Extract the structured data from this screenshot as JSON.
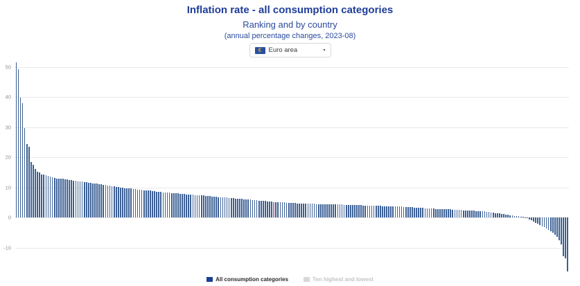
{
  "header": {
    "title": "Inflation rate - all consumption categories",
    "subtitle": "Ranking and by country",
    "note": "(annual percentage changes, 2023-08)"
  },
  "dropdown": {
    "selected": "Euro area",
    "flag_glyph": "€",
    "caret_glyph": "▾"
  },
  "legend": {
    "items": [
      {
        "label": "All consumption categories",
        "color": "#1c3e94",
        "active": true
      },
      {
        "label": "Ten highest and lowest",
        "color": "#d8d8d8",
        "active": false
      }
    ]
  },
  "colors": {
    "bar": "#3b5f94",
    "highlight": "#bb7b9a",
    "grid": "#e9e9e9",
    "title_navy": "#1f3d99",
    "axis_label": "#8c8c8c"
  },
  "chart_data": {
    "type": "bar",
    "title": "Inflation rate - all consumption categories",
    "subtitle": "Ranking and by country (annual percentage changes, 2023-08)",
    "xlabel": "",
    "ylabel": "",
    "grid": true,
    "legend_position": "bottom",
    "yticks": [
      50,
      40,
      30,
      20,
      10,
      0,
      -10
    ],
    "ylim": [
      -18.6,
      52
    ],
    "highlight": {
      "index": 121,
      "value": 5.2,
      "color": "#bb7b9a"
    },
    "series": [
      {
        "name": "All consumption categories",
        "values": [
          51.6,
          49.3,
          39.7,
          38.0,
          29.7,
          24.4,
          23.4,
          18.5,
          17.6,
          16.1,
          15.3,
          15.0,
          14.4,
          14.3,
          14.0,
          13.8,
          13.6,
          13.4,
          13.2,
          13.0,
          12.9,
          12.8,
          12.8,
          12.7,
          12.6,
          12.5,
          12.4,
          12.3,
          12.2,
          12.1,
          12.0,
          11.9,
          11.8,
          11.7,
          11.6,
          11.5,
          11.4,
          11.3,
          11.2,
          11.1,
          11.0,
          10.9,
          10.8,
          10.7,
          10.5,
          10.4,
          10.3,
          10.2,
          10.1,
          10.0,
          9.9,
          9.8,
          9.8,
          9.7,
          9.6,
          9.5,
          9.4,
          9.3,
          9.3,
          9.2,
          9.1,
          9.0,
          8.9,
          8.9,
          8.8,
          8.7,
          8.6,
          8.5,
          8.5,
          8.4,
          8.3,
          8.2,
          8.2,
          8.1,
          8.1,
          8.0,
          8.0,
          7.9,
          7.8,
          7.8,
          7.7,
          7.7,
          7.6,
          7.6,
          7.5,
          7.4,
          7.4,
          7.3,
          7.3,
          7.2,
          7.2,
          7.1,
          7.0,
          7.0,
          6.9,
          6.8,
          6.8,
          6.7,
          6.7,
          6.6,
          6.5,
          6.5,
          6.4,
          6.3,
          6.3,
          6.2,
          6.2,
          6.1,
          6.0,
          6.0,
          5.9,
          5.8,
          5.8,
          5.7,
          5.6,
          5.6,
          5.5,
          5.5,
          5.4,
          5.3,
          5.3,
          5.2,
          5.2,
          5.1,
          5.1,
          5.0,
          5.0,
          4.9,
          4.9,
          4.9,
          4.8,
          4.8,
          4.7,
          4.7,
          4.7,
          4.7,
          4.6,
          4.6,
          4.6,
          4.6,
          4.6,
          4.5,
          4.5,
          4.5,
          4.5,
          4.4,
          4.4,
          4.4,
          4.4,
          4.4,
          4.3,
          4.3,
          4.3,
          4.3,
          4.2,
          4.2,
          4.2,
          4.2,
          4.2,
          4.1,
          4.1,
          4.1,
          4.1,
          4.0,
          4.0,
          4.0,
          4.0,
          4.0,
          3.9,
          3.9,
          3.9,
          3.9,
          3.8,
          3.8,
          3.8,
          3.8,
          3.7,
          3.7,
          3.7,
          3.6,
          3.6,
          3.6,
          3.5,
          3.5,
          3.4,
          3.4,
          3.4,
          3.3,
          3.3,
          3.2,
          3.2,
          3.2,
          3.1,
          3.1,
          3.1,
          3.0,
          3.0,
          2.9,
          2.9,
          2.9,
          2.8,
          2.8,
          2.7,
          2.7,
          2.7,
          2.6,
          2.6,
          2.6,
          2.5,
          2.5,
          2.4,
          2.4,
          2.4,
          2.3,
          2.3,
          2.3,
          2.2,
          2.2,
          2.1,
          2.1,
          2.0,
          1.9,
          1.8,
          1.7,
          1.6,
          1.5,
          1.4,
          1.3,
          1.2,
          1.1,
          1.0,
          0.9,
          0.8,
          0.7,
          0.6,
          0.5,
          0.4,
          0.3,
          0.2,
          0.1,
          -0.3,
          -0.6,
          -1.0,
          -1.4,
          -1.7,
          -2.1,
          -2.5,
          -2.9,
          -3.3,
          -3.7,
          -4.2,
          -4.6,
          -5.1,
          -5.7,
          -6.3,
          -7.5,
          -9.0,
          -12.9,
          -13.6,
          -18.0
        ]
      }
    ]
  }
}
